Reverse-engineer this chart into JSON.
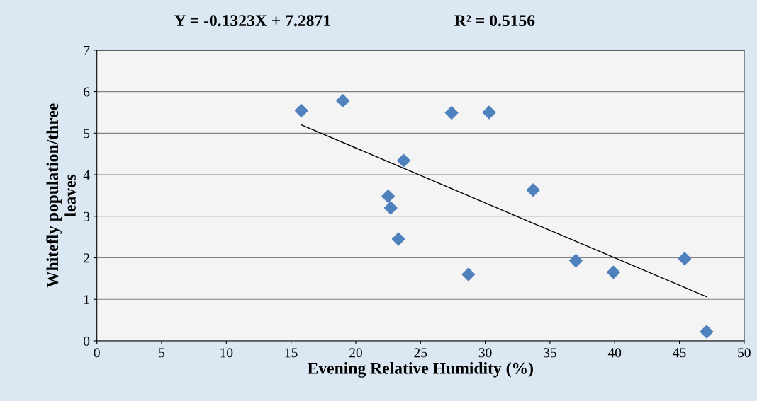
{
  "chart_data": {
    "type": "scatter",
    "xlabel": "Evening Relative Humidity (%)",
    "ylabel": "Whitefly population/three leaves",
    "annotations": [
      "Y = -0.1323X + 7.2871",
      "R² = 0.5156"
    ],
    "series": [
      {
        "color": "#4f81bd",
        "marker": "diamond",
        "x": [
          15.8,
          19.0,
          27.4,
          30.3,
          23.7,
          22.5,
          22.7,
          23.3,
          33.7,
          28.7,
          37.0,
          39.9,
          45.4,
          47.1
        ],
        "values": [
          5.54,
          5.78,
          5.49,
          5.5,
          4.34,
          3.48,
          3.2,
          2.45,
          3.63,
          1.6,
          1.93,
          1.65,
          1.98,
          0.22
        ]
      },
      {
        "type": "line",
        "color": "#000000",
        "marker": "none",
        "x": [
          15.8,
          47.1
        ],
        "values": [
          5.2,
          1.06
        ]
      }
    ],
    "xlim": [
      0,
      50
    ],
    "xticks": [
      0,
      5,
      10,
      15,
      20,
      25,
      30,
      35,
      40,
      45,
      50
    ],
    "ylim": [
      0,
      7
    ],
    "yticks": [
      0,
      1,
      2,
      3,
      4,
      5,
      6,
      7
    ],
    "grid": "y",
    "legend": false
  }
}
